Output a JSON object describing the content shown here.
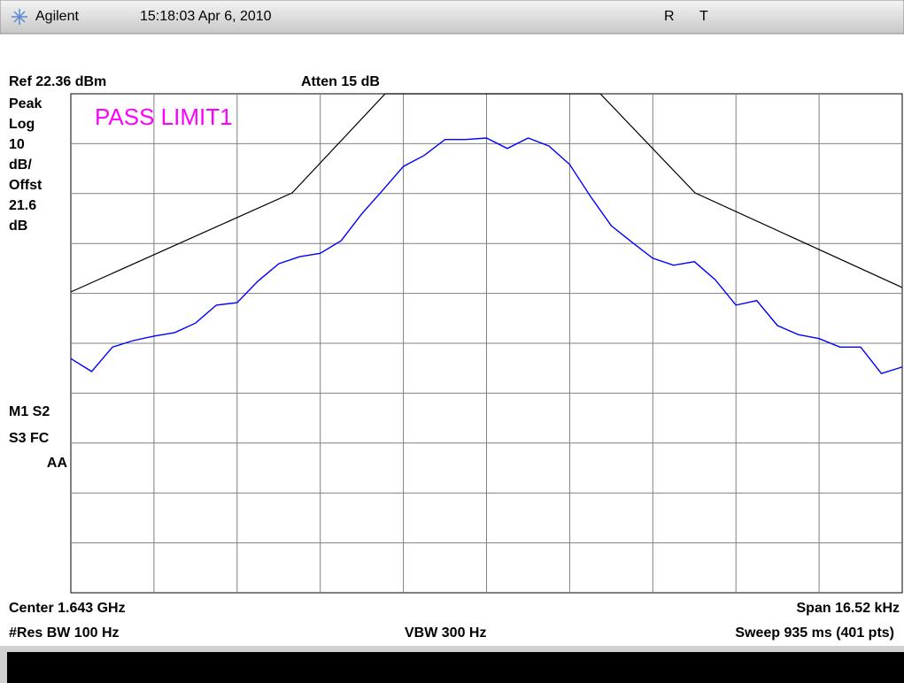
{
  "header": {
    "brand": "Agilent",
    "datetime": "15:18:03 Apr 6, 2010",
    "flags": [
      "R",
      "T"
    ]
  },
  "screen": {
    "ref_level": "Ref 22.36 dBm",
    "atten": "Atten 15 dB",
    "side_labels": [
      "Peak",
      "Log",
      "10",
      "dB/",
      "Offst",
      "21.6",
      "dB"
    ],
    "status_labels": [
      "M1  S2",
      "S3  FC",
      "AA"
    ],
    "limit_status": "PASS LIMIT1",
    "center": "Center 1.643 GHz",
    "span": "Span 16.52 kHz",
    "res_bw": "#Res BW 100 Hz",
    "vbw": "VBW 300 Hz",
    "sweep": "Sweep 935 ms (401 pts)"
  },
  "trace": {
    "color": "#0000ff",
    "ylim": [
      -77.64,
      22.36
    ],
    "values": [
      -30.7,
      -33.3,
      -28.4,
      -27.1,
      -26.2,
      -25.5,
      -23.6,
      -20.0,
      -19.5,
      -15.2,
      -11.7,
      -10.3,
      -9.6,
      -7.1,
      -1.7,
      3.0,
      7.8,
      10.0,
      13.2,
      13.2,
      13.5,
      11.4,
      13.5,
      11.9,
      8.2,
      1.8,
      -4.1,
      -7.4,
      -10.6,
      -12.0,
      -11.3,
      -14.9,
      -20.0,
      -19.1,
      -24.1,
      -25.9,
      -26.7,
      -28.4,
      -28.4,
      -33.7,
      -32.4
    ]
  }
}
